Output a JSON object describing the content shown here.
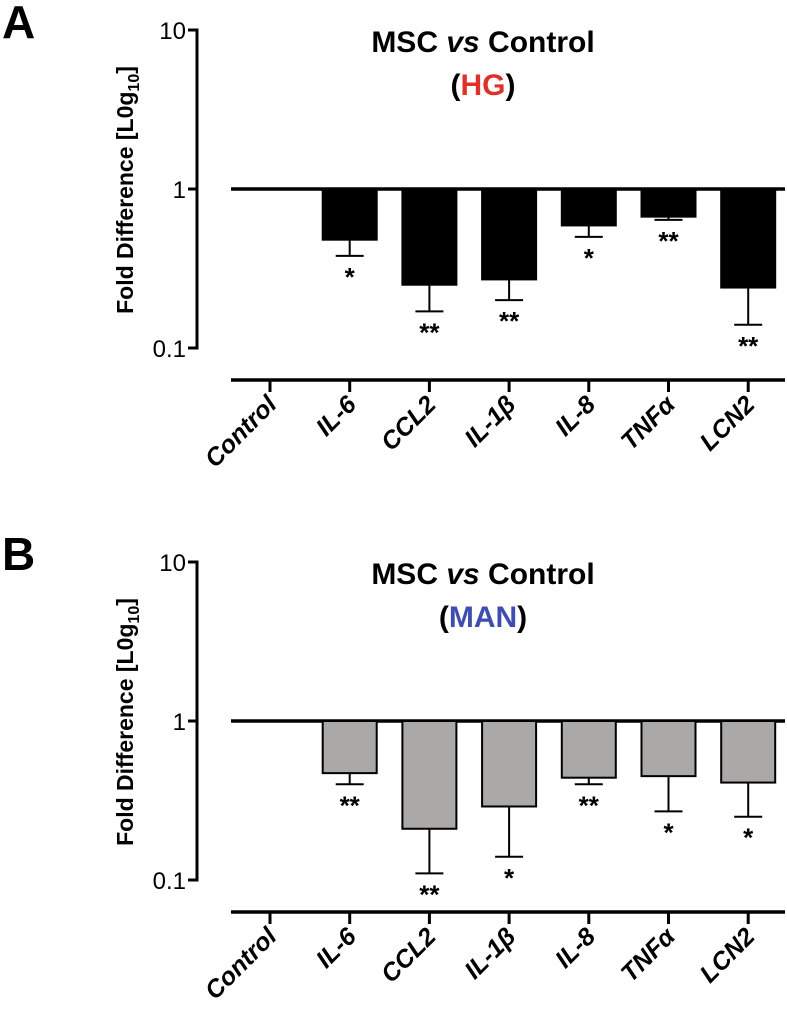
{
  "chart_data": [
    {
      "type": "bar",
      "panel": "A",
      "title": "MSC vs Control",
      "title_parts": {
        "prefix": "MSC ",
        "italic": "vs",
        "suffix": " Control"
      },
      "subtitle": "HG",
      "subtitle_color": "#e0302a",
      "ylabel": "Fold Difference [L0g10]",
      "ylabel_parts": {
        "main": "Fold Difference [L0g",
        "sub": "10",
        "end": "]"
      },
      "yscale": "log",
      "ylim": [
        0.1,
        10
      ],
      "yticks": [
        "0.1",
        "1",
        "10"
      ],
      "baseline": 1,
      "bar_color": "#000000",
      "categories": [
        "Control",
        "IL-6",
        "CCL2",
        "IL-1β",
        "IL-8",
        "TNFα",
        "LCN2"
      ],
      "values": [
        1,
        0.48,
        0.25,
        0.27,
        0.59,
        0.67,
        0.24
      ],
      "error_low": [
        null,
        0.38,
        0.17,
        0.2,
        0.5,
        0.64,
        0.14
      ],
      "significance": [
        "",
        "*",
        "**",
        "**",
        "*",
        "**",
        "**"
      ]
    },
    {
      "type": "bar",
      "panel": "B",
      "title": "MSC vs Control",
      "title_parts": {
        "prefix": "MSC ",
        "italic": "vs",
        "suffix": " Control"
      },
      "subtitle": "MAN",
      "subtitle_color": "#3f4db0",
      "ylabel": "Fold Difference [L0g10]",
      "ylabel_parts": {
        "main": "Fold Difference [L0g",
        "sub": "10",
        "end": "]"
      },
      "yscale": "log",
      "ylim": [
        0.1,
        10
      ],
      "yticks": [
        "0.1",
        "1",
        "10"
      ],
      "baseline": 1,
      "bar_color": "#aba8a8",
      "categories": [
        "Control",
        "IL-6",
        "CCL2",
        "IL-1β",
        "IL-8",
        "TNFα",
        "LCN2"
      ],
      "values": [
        1,
        0.47,
        0.21,
        0.29,
        0.44,
        0.45,
        0.41
      ],
      "error_low": [
        null,
        0.4,
        0.11,
        0.14,
        0.4,
        0.27,
        0.25
      ],
      "significance": [
        "",
        "**",
        "**",
        "*",
        "**",
        "*",
        "*"
      ]
    }
  ]
}
